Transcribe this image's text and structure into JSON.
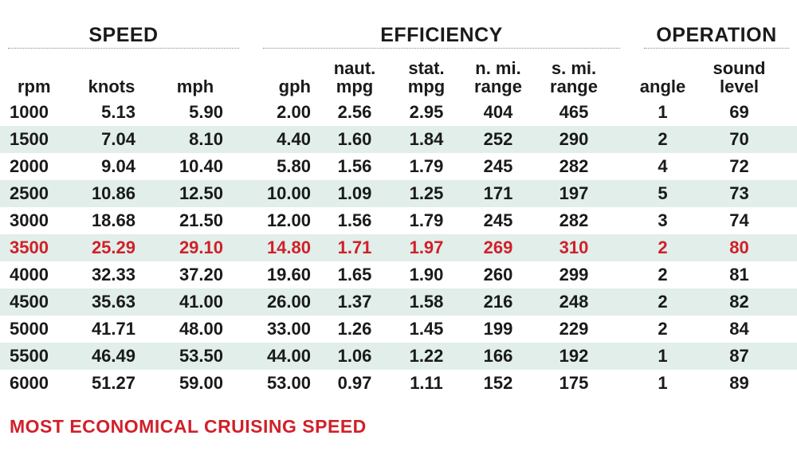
{
  "groups": {
    "speed": "SPEED",
    "efficiency": "EFFICIENCY",
    "operation": "OPERATION"
  },
  "columns": {
    "rpm": "rpm",
    "knots": "knots",
    "mph": "mph",
    "gph": "gph",
    "naut_mpg": [
      "naut.",
      "mpg"
    ],
    "stat_mpg": [
      "stat.",
      "mpg"
    ],
    "n_mi_range": [
      "n. mi.",
      "range"
    ],
    "s_mi_range": [
      "s. mi.",
      "range"
    ],
    "angle": "angle",
    "sound_level": [
      "sound",
      "level"
    ]
  },
  "rows": [
    {
      "rpm": "1000",
      "knots": "5.13",
      "mph": "5.90",
      "gph": "2.00",
      "naut_mpg": "2.56",
      "stat_mpg": "2.95",
      "n_mi_range": "404",
      "s_mi_range": "465",
      "angle": "1",
      "sound_level": "69"
    },
    {
      "rpm": "1500",
      "knots": "7.04",
      "mph": "8.10",
      "gph": "4.40",
      "naut_mpg": "1.60",
      "stat_mpg": "1.84",
      "n_mi_range": "252",
      "s_mi_range": "290",
      "angle": "2",
      "sound_level": "70"
    },
    {
      "rpm": "2000",
      "knots": "9.04",
      "mph": "10.40",
      "gph": "5.80",
      "naut_mpg": "1.56",
      "stat_mpg": "1.79",
      "n_mi_range": "245",
      "s_mi_range": "282",
      "angle": "4",
      "sound_level": "72"
    },
    {
      "rpm": "2500",
      "knots": "10.86",
      "mph": "12.50",
      "gph": "10.00",
      "naut_mpg": "1.09",
      "stat_mpg": "1.25",
      "n_mi_range": "171",
      "s_mi_range": "197",
      "angle": "5",
      "sound_level": "73"
    },
    {
      "rpm": "3000",
      "knots": "18.68",
      "mph": "21.50",
      "gph": "12.00",
      "naut_mpg": "1.56",
      "stat_mpg": "1.79",
      "n_mi_range": "245",
      "s_mi_range": "282",
      "angle": "3",
      "sound_level": "74"
    },
    {
      "rpm": "3500",
      "knots": "25.29",
      "mph": "29.10",
      "gph": "14.80",
      "naut_mpg": "1.71",
      "stat_mpg": "1.97",
      "n_mi_range": "269",
      "s_mi_range": "310",
      "angle": "2",
      "sound_level": "80"
    },
    {
      "rpm": "4000",
      "knots": "32.33",
      "mph": "37.20",
      "gph": "19.60",
      "naut_mpg": "1.65",
      "stat_mpg": "1.90",
      "n_mi_range": "260",
      "s_mi_range": "299",
      "angle": "2",
      "sound_level": "81"
    },
    {
      "rpm": "4500",
      "knots": "35.63",
      "mph": "41.00",
      "gph": "26.00",
      "naut_mpg": "1.37",
      "stat_mpg": "1.58",
      "n_mi_range": "216",
      "s_mi_range": "248",
      "angle": "2",
      "sound_level": "82"
    },
    {
      "rpm": "5000",
      "knots": "41.71",
      "mph": "48.00",
      "gph": "33.00",
      "naut_mpg": "1.26",
      "stat_mpg": "1.45",
      "n_mi_range": "199",
      "s_mi_range": "229",
      "angle": "2",
      "sound_level": "84"
    },
    {
      "rpm": "5500",
      "knots": "46.49",
      "mph": "53.50",
      "gph": "44.00",
      "naut_mpg": "1.06",
      "stat_mpg": "1.22",
      "n_mi_range": "166",
      "s_mi_range": "192",
      "angle": "1",
      "sound_level": "87"
    },
    {
      "rpm": "6000",
      "knots": "51.27",
      "mph": "59.00",
      "gph": "53.00",
      "naut_mpg": "0.97",
      "stat_mpg": "1.11",
      "n_mi_range": "152",
      "s_mi_range": "175",
      "angle": "1",
      "sound_level": "89"
    }
  ],
  "highlighted_rpm": "3500",
  "footer_note": "MOST ECONOMICAL CRUISING SPEED",
  "colors": {
    "highlight": "#d0202a",
    "row_shade": "#e1eee9",
    "text": "#1a1a1a"
  }
}
